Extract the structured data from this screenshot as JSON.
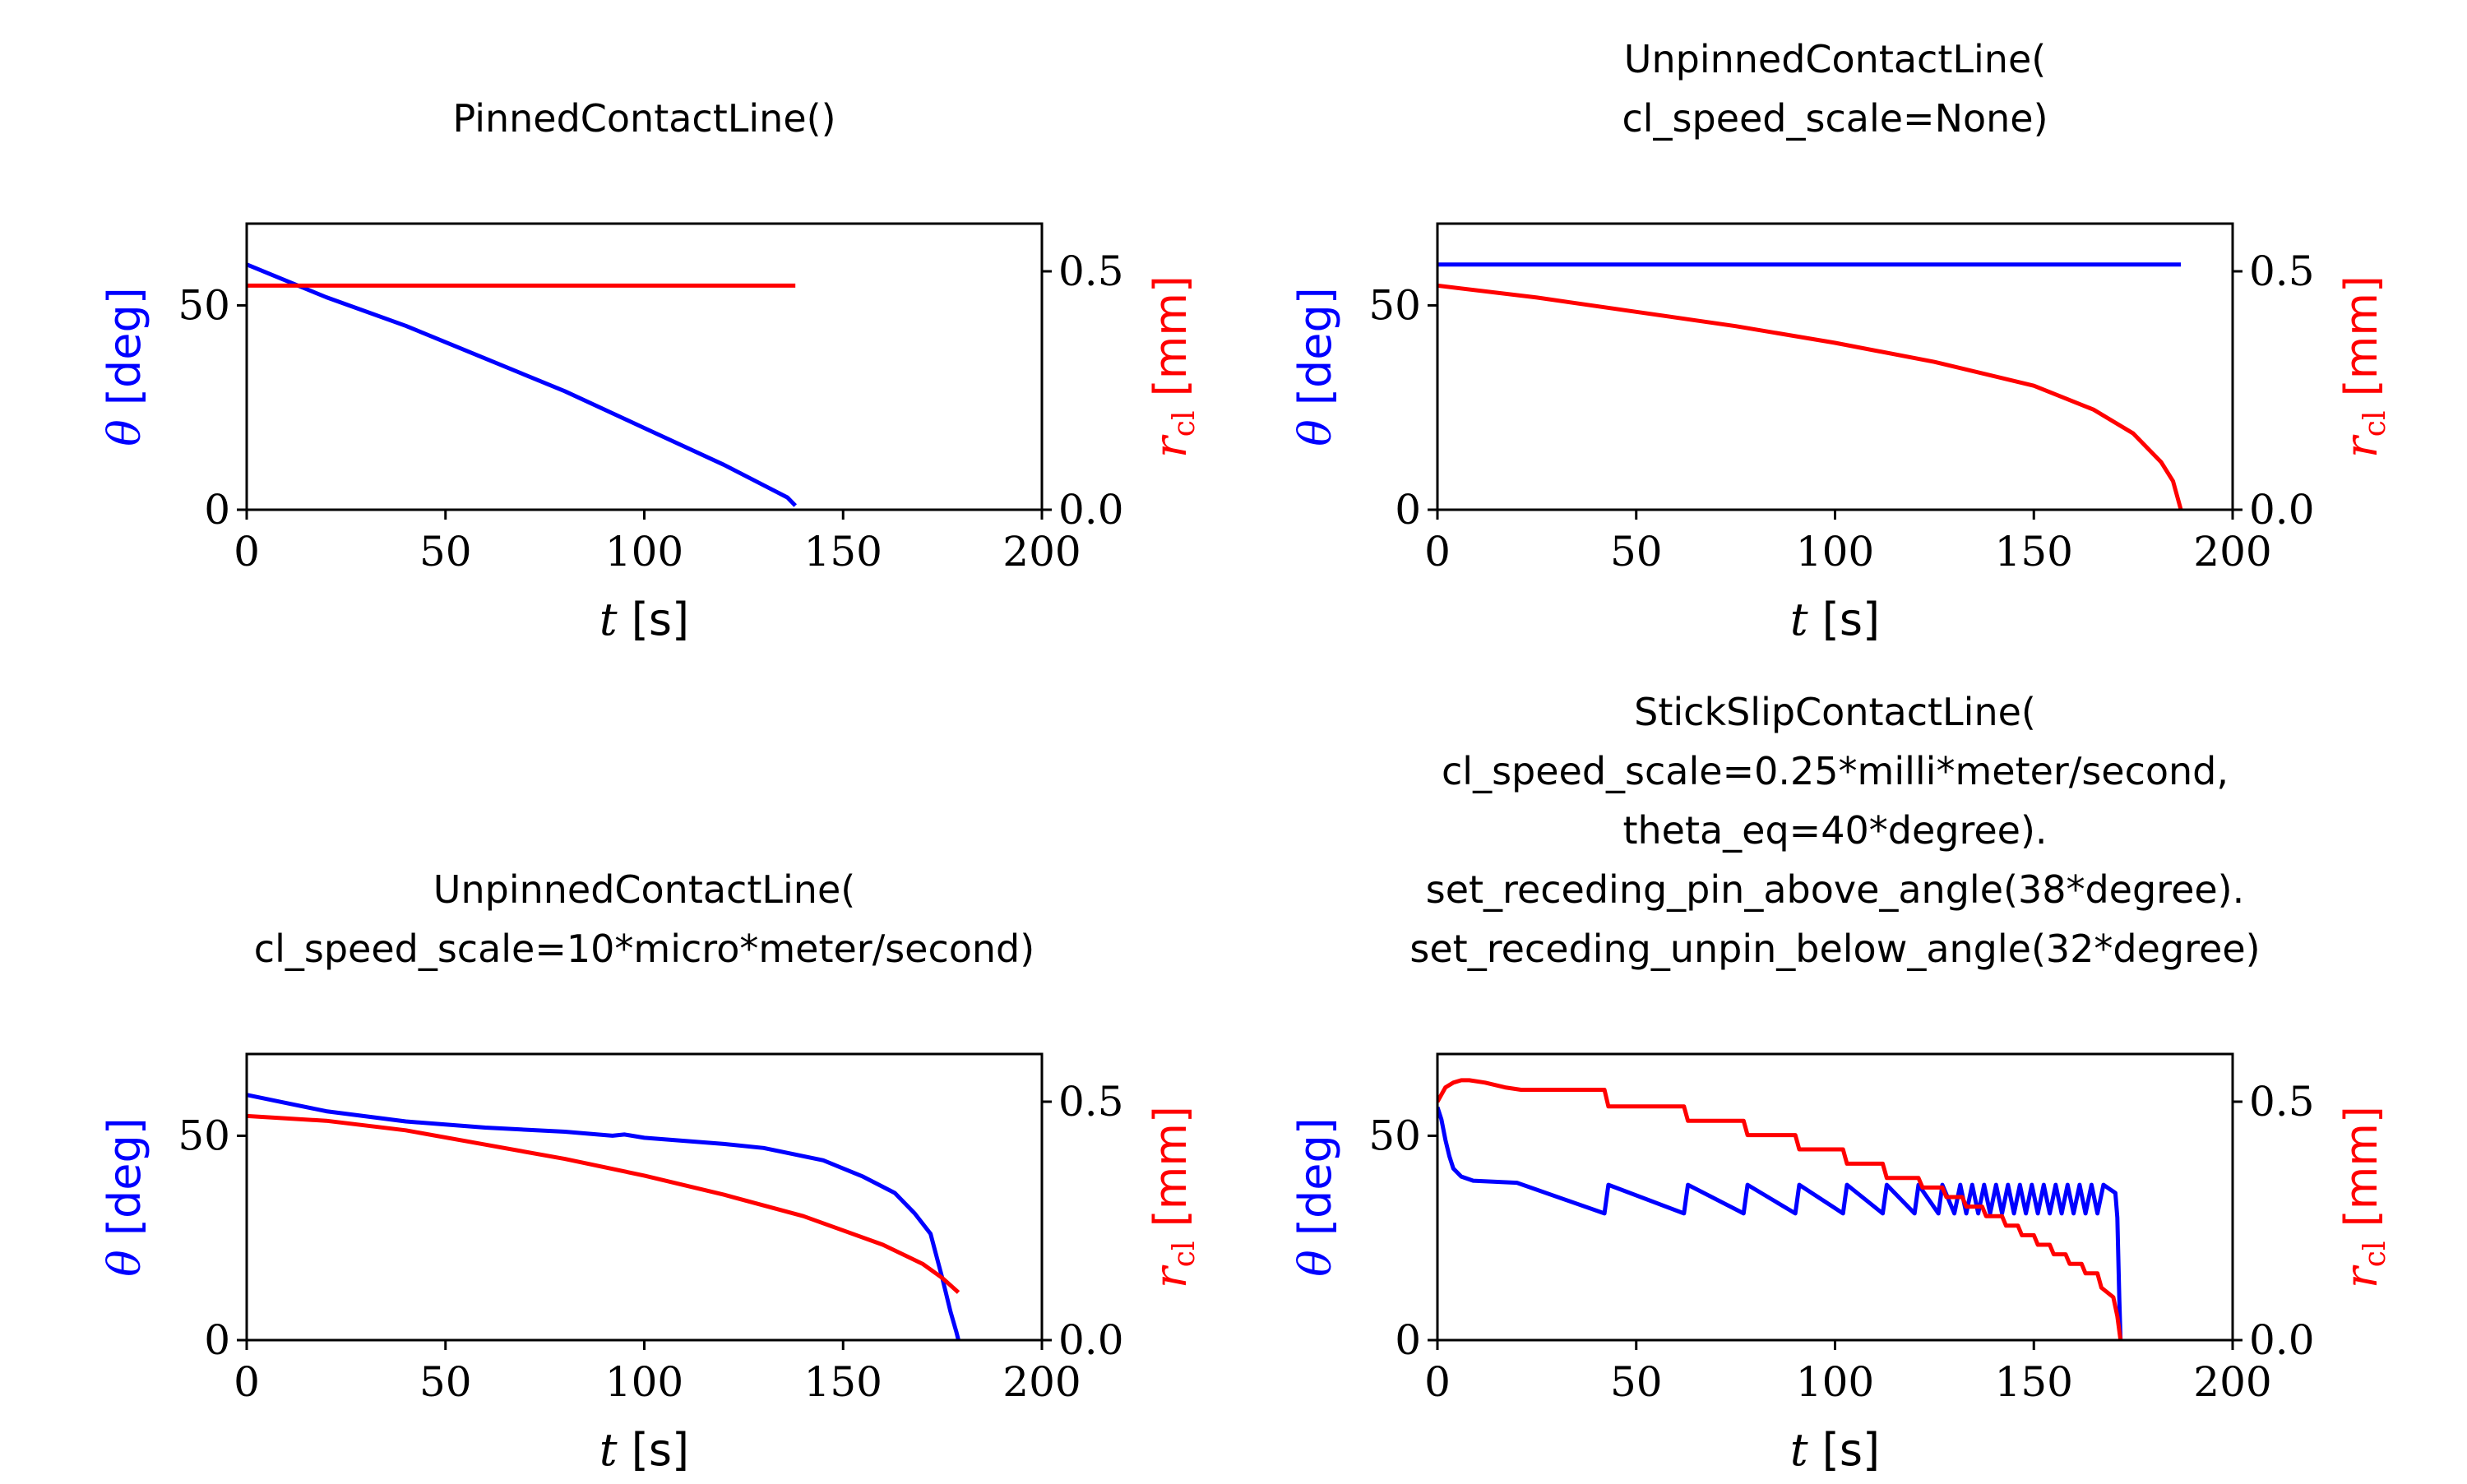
{
  "chart_data": [
    {
      "type": "line",
      "title_lines": [
        "PinnedContactLine()"
      ],
      "xlabel_var": "t",
      "xlabel_unit": "[s]",
      "ylabel_var": "θ",
      "ylabel_unit": "[deg]",
      "y2label_var": "r",
      "y2label_sub": "cl",
      "y2label_unit": "[mm]",
      "xlim": [
        0,
        200
      ],
      "ylim": [
        0,
        70
      ],
      "y2lim": [
        0,
        0.6
      ],
      "xticks": [
        "0",
        "50",
        "100",
        "150",
        "200"
      ],
      "yticks": [
        "0",
        "50"
      ],
      "y2ticks": [
        "0.0",
        "0.5"
      ],
      "colors": {
        "theta": "#0000ff",
        "r": "#ff0000"
      },
      "series": [
        {
          "axis": "left",
          "color": "#0000ff",
          "x": [
            0,
            20,
            40,
            60,
            80,
            100,
            120,
            130,
            136,
            138
          ],
          "y": [
            60,
            52,
            45,
            37,
            29,
            20,
            11,
            6,
            3,
            1
          ]
        },
        {
          "axis": "right",
          "color": "#ff0000",
          "x": [
            0,
            138
          ],
          "y": [
            0.47,
            0.47
          ]
        }
      ]
    },
    {
      "type": "line",
      "title_lines": [
        "UnpinnedContactLine(",
        "cl_speed_scale=None)"
      ],
      "xlabel_var": "t",
      "xlabel_unit": "[s]",
      "ylabel_var": "θ",
      "ylabel_unit": "[deg]",
      "y2label_var": "r",
      "y2label_sub": "cl",
      "y2label_unit": "[mm]",
      "xlim": [
        0,
        200
      ],
      "ylim": [
        0,
        70
      ],
      "y2lim": [
        0,
        0.6
      ],
      "xticks": [
        "0",
        "50",
        "100",
        "150",
        "200"
      ],
      "yticks": [
        "0",
        "50"
      ],
      "y2ticks": [
        "0.0",
        "0.5"
      ],
      "colors": {
        "theta": "#0000ff",
        "r": "#ff0000"
      },
      "series": [
        {
          "axis": "left",
          "color": "#0000ff",
          "x": [
            0,
            187
          ],
          "y": [
            60,
            60
          ]
        },
        {
          "axis": "right",
          "color": "#ff0000",
          "x": [
            0,
            25,
            50,
            75,
            100,
            125,
            150,
            165,
            175,
            182,
            185,
            187
          ],
          "y": [
            0.47,
            0.445,
            0.415,
            0.385,
            0.35,
            0.31,
            0.26,
            0.21,
            0.16,
            0.1,
            0.06,
            0.0
          ]
        }
      ]
    },
    {
      "type": "line",
      "title_lines": [
        "UnpinnedContactLine(",
        "cl_speed_scale=10*micro*meter/second)"
      ],
      "xlabel_var": "t",
      "xlabel_unit": "[s]",
      "ylabel_var": "θ",
      "ylabel_unit": "[deg]",
      "y2label_var": "r",
      "y2label_sub": "cl",
      "y2label_unit": "[mm]",
      "xlim": [
        0,
        200
      ],
      "ylim": [
        0,
        70
      ],
      "y2lim": [
        0,
        0.6
      ],
      "xticks": [
        "0",
        "50",
        "100",
        "150",
        "200"
      ],
      "yticks": [
        "0",
        "50"
      ],
      "y2ticks": [
        "0.0",
        "0.5"
      ],
      "colors": {
        "theta": "#0000ff",
        "r": "#ff0000"
      },
      "series": [
        {
          "axis": "left",
          "color": "#0000ff",
          "x": [
            0,
            10,
            20,
            40,
            60,
            80,
            92,
            95,
            100,
            120,
            130,
            145,
            155,
            163,
            168,
            172,
            175,
            177,
            178.5,
            179
          ],
          "y": [
            60,
            58,
            56,
            53.5,
            52,
            51,
            50,
            50.3,
            49.5,
            48,
            47,
            44,
            40,
            36,
            31,
            26,
            15,
            7,
            2,
            0
          ]
        },
        {
          "axis": "right",
          "color": "#ff0000",
          "x": [
            0,
            20,
            40,
            60,
            80,
            100,
            120,
            140,
            160,
            170,
            175,
            179
          ],
          "y": [
            0.47,
            0.46,
            0.44,
            0.41,
            0.38,
            0.345,
            0.305,
            0.26,
            0.2,
            0.16,
            0.13,
            0.1
          ]
        }
      ]
    },
    {
      "type": "line",
      "title_lines": [
        "StickSlipContactLine(",
        "cl_speed_scale=0.25*milli*meter/second,",
        "theta_eq=40*degree).",
        "set_receding_pin_above_angle(38*degree).",
        "set_receding_unpin_below_angle(32*degree)"
      ],
      "xlabel_var": "t",
      "xlabel_unit": "[s]",
      "ylabel_var": "θ",
      "ylabel_unit": "[deg]",
      "y2label_var": "r",
      "y2label_sub": "cl",
      "y2label_unit": "[mm]",
      "xlim": [
        0,
        200
      ],
      "ylim": [
        0,
        70
      ],
      "y2lim": [
        0,
        0.6
      ],
      "xticks": [
        "0",
        "50",
        "100",
        "150",
        "200"
      ],
      "yticks": [
        "0",
        "50"
      ],
      "y2ticks": [
        "0.0",
        "0.5"
      ],
      "colors": {
        "theta": "#0000ff",
        "r": "#ff0000"
      },
      "series": [
        {
          "axis": "left",
          "color": "#0000ff",
          "x": [
            0,
            1,
            2,
            3,
            4,
            6,
            9,
            20,
            42,
            43,
            62,
            63,
            77,
            78,
            90,
            91,
            102,
            103,
            112,
            113,
            120,
            121,
            126,
            127,
            130,
            131.5,
            133,
            134.5,
            136,
            137.5,
            139,
            140.5,
            142,
            143.5,
            145,
            146.5,
            148,
            149.5,
            151,
            152.5,
            154,
            155.5,
            157,
            158.5,
            160,
            161.5,
            163,
            164.5,
            166,
            167.5,
            169,
            170.5,
            171,
            171.5,
            171.8
          ],
          "y": [
            57,
            54,
            49,
            45,
            42,
            40,
            39,
            38.5,
            31,
            38,
            31,
            38,
            31,
            38,
            31,
            38,
            31,
            38,
            31,
            38,
            31,
            38,
            31,
            38,
            31,
            38,
            31,
            38,
            31,
            38,
            31,
            38,
            31,
            38,
            31,
            38,
            31,
            38,
            31,
            38,
            31,
            38,
            31,
            38,
            31,
            38,
            31,
            38,
            31,
            38,
            37,
            36,
            30,
            10,
            0
          ]
        },
        {
          "axis": "right",
          "color": "#ff0000",
          "x": [
            0,
            2,
            4,
            6,
            8,
            12,
            17,
            21,
            42,
            43,
            62,
            63,
            77,
            78,
            90,
            91,
            102,
            103,
            112,
            113,
            121,
            122,
            127,
            128,
            132,
            133,
            137,
            138,
            142,
            143,
            146,
            147,
            150,
            151,
            154,
            155,
            158,
            159,
            162,
            163,
            166,
            167,
            170,
            171,
            171.8
          ],
          "y": [
            0.5,
            0.53,
            0.54,
            0.545,
            0.545,
            0.54,
            0.53,
            0.525,
            0.525,
            0.49,
            0.49,
            0.46,
            0.46,
            0.43,
            0.43,
            0.4,
            0.4,
            0.37,
            0.37,
            0.34,
            0.34,
            0.32,
            0.32,
            0.3,
            0.3,
            0.28,
            0.28,
            0.26,
            0.26,
            0.24,
            0.24,
            0.22,
            0.22,
            0.2,
            0.2,
            0.18,
            0.18,
            0.16,
            0.16,
            0.14,
            0.14,
            0.11,
            0.09,
            0.05,
            0.0
          ]
        }
      ]
    }
  ]
}
